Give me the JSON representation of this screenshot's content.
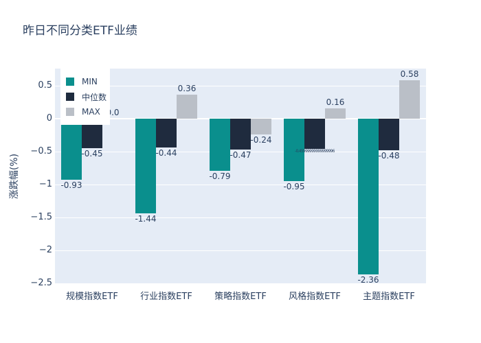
{
  "chart_data": {
    "type": "bar",
    "title": "昨日不同分类ETF业绩",
    "ylabel": "涨跌幅(%)",
    "xlabel": "",
    "categories": [
      "规模指数ETF",
      "行业指数ETF",
      "策略指数ETF",
      "风格指数ETF",
      "主题指数ETF"
    ],
    "series": [
      {
        "name": "MIN",
        "color": "#0a8f8d",
        "values": [
          -0.93,
          -1.44,
          -0.79,
          -0.95,
          -2.36
        ],
        "labels": [
          "-0.93",
          "-1.44",
          "-0.79",
          "-0.95",
          "-2.36"
        ]
      },
      {
        "name": "中位数",
        "color": "#1f2b3e",
        "values": [
          -0.45,
          -0.44,
          -0.47,
          -0.46,
          -0.48
        ],
        "labels": [
          "-0.45",
          "-0.44",
          "-0.47",
          "-0.45999999999999996",
          "-0.48"
        ]
      },
      {
        "name": "MAX",
        "color": "#babfc7",
        "values": [
          0.0,
          0.36,
          -0.24,
          0.16,
          0.58
        ],
        "labels": [
          "0.0",
          "0.36",
          "-0.24",
          "0.16",
          "0.58"
        ]
      }
    ],
    "yaxis": {
      "range": [
        -2.51,
        0.76
      ],
      "ticks": [
        0.5,
        0,
        -0.5,
        -1,
        -1.5,
        -2,
        -2.5
      ],
      "tick_labels": [
        "0.5",
        "0",
        "−0.5",
        "−1",
        "−1.5",
        "−2",
        "−2.5"
      ]
    },
    "legend": {
      "position": "top-left",
      "entries": [
        "MIN",
        "中位数",
        "MAX"
      ]
    },
    "grid": true,
    "plot_bgcolor": "#e5ecf6",
    "gridcolor": "#ffffff",
    "text_color": "#2a3f5f"
  }
}
